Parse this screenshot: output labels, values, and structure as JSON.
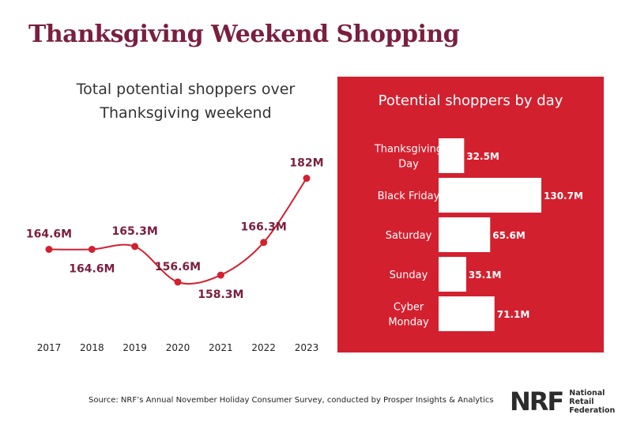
{
  "title": "Thanksgiving Weekend Shopping",
  "source": "Source: NRF’s Annual November Holiday Consumer Survey, conducted by Prosper Insights & Analytics",
  "logo": {
    "mark": "NRF",
    "line1": "National",
    "line2": "Retail",
    "line3": "Federation"
  },
  "colors": {
    "title": "#7a1f3d",
    "line": "#d3202f",
    "label": "#7a1f3d",
    "panel": "#d3202f",
    "bar": "#ffffff"
  },
  "chart_data": [
    {
      "type": "line",
      "title_lines": [
        "Total potential shoppers over",
        "Thanksgiving weekend"
      ],
      "x": [
        "2017",
        "2018",
        "2019",
        "2020",
        "2021",
        "2022",
        "2023"
      ],
      "values": [
        164.6,
        164.6,
        165.3,
        156.6,
        158.3,
        166.3,
        182
      ],
      "labels": [
        "164.6M",
        "164.6M",
        "165.3M",
        "156.6M",
        "158.3M",
        "166.3M",
        "182M"
      ],
      "label_positions": [
        "above",
        "below",
        "above",
        "above",
        "below",
        "above",
        "above"
      ],
      "ylim": [
        150,
        185
      ],
      "grid": false,
      "unit": "M"
    },
    {
      "type": "bar",
      "orientation": "horizontal",
      "title": "Potential shoppers by day",
      "categories": [
        [
          "Thanksgiving",
          "Day"
        ],
        [
          "Black Friday"
        ],
        [
          "Saturday"
        ],
        [
          "Sunday"
        ],
        [
          "Cyber",
          "Monday"
        ]
      ],
      "values": [
        32.5,
        130.7,
        65.6,
        35.1,
        71.1
      ],
      "labels": [
        "32.5M",
        "130.7M",
        "65.6M",
        "35.1M",
        "71.1M"
      ],
      "xlim": [
        0,
        130.7
      ],
      "unit": "M"
    }
  ]
}
